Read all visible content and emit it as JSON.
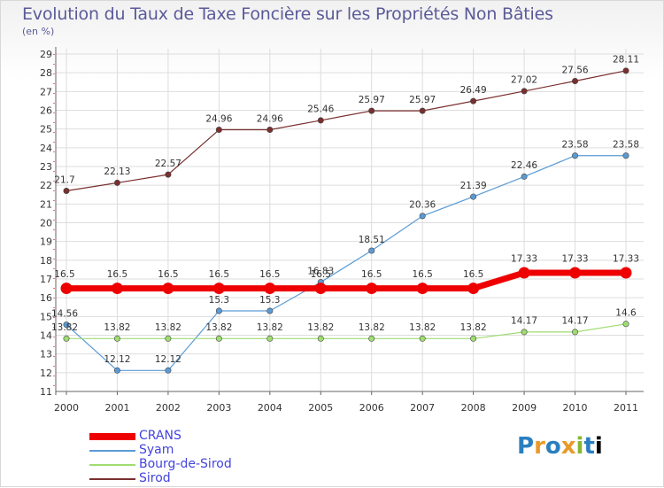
{
  "header": {
    "title": "Evolution du Taux de Taxe Foncière sur les Propriétés Non Bâties",
    "subtitle": "(en %)"
  },
  "logo": {
    "letters": [
      "P",
      "r",
      "o",
      "x",
      "i",
      "t",
      "i"
    ]
  },
  "chart_data": {
    "type": "line",
    "title": "Evolution du Taux de Taxe Foncière sur les Propriétés Non Bâties",
    "ylabel": "(en %)",
    "xlabel": "",
    "x": [
      "2000",
      "2001",
      "2002",
      "2003",
      "2004",
      "2005",
      "2006",
      "2007",
      "2008",
      "2009",
      "2010",
      "2011"
    ],
    "ylim": [
      11,
      29
    ],
    "yticks": [
      11,
      12,
      13,
      14,
      15,
      16,
      17,
      18,
      19,
      20,
      21,
      22,
      23,
      24,
      25,
      26,
      27,
      28,
      29
    ],
    "grid": true,
    "legend_position": "bottom-left",
    "series": [
      {
        "name": "CRANS",
        "color": "#ee0000",
        "values": [
          16.5,
          16.5,
          16.5,
          16.5,
          16.5,
          16.5,
          16.5,
          16.5,
          16.5,
          17.33,
          17.33,
          17.33
        ]
      },
      {
        "name": "Syam",
        "color": "#5b9bd5",
        "values": [
          14.56,
          12.12,
          12.12,
          15.3,
          15.3,
          16.83,
          18.51,
          20.36,
          21.39,
          22.46,
          23.58,
          23.58
        ]
      },
      {
        "name": "Bourg-de-Sirod",
        "color": "#9fdc72",
        "values": [
          13.82,
          13.82,
          13.82,
          13.82,
          13.82,
          13.82,
          13.82,
          13.82,
          13.82,
          14.17,
          14.17,
          14.6
        ]
      },
      {
        "name": "Sirod",
        "color": "#7a2f2f",
        "values": [
          21.7,
          22.13,
          22.57,
          24.96,
          24.96,
          25.46,
          25.97,
          25.97,
          26.49,
          27.02,
          27.56,
          28.11
        ]
      }
    ]
  }
}
